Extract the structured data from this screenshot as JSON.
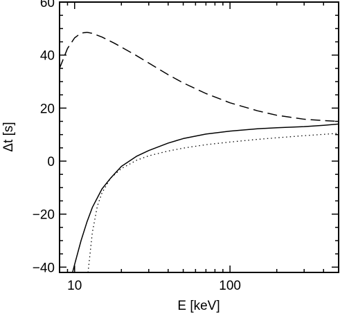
{
  "chart_data": {
    "type": "line",
    "title": "",
    "xlabel": "E [keV]",
    "ylabel": "Δt [s]",
    "xscale": "log",
    "xlim": [
      8,
      500
    ],
    "ylim": [
      -42,
      60
    ],
    "grid": false,
    "legend": "none",
    "x_tick_labels": [
      {
        "value": 10,
        "label": "10"
      },
      {
        "value": 100,
        "label": "100"
      }
    ],
    "y_tick_labels": [
      {
        "value": 60,
        "label": "60"
      },
      {
        "value": 40,
        "label": "40"
      },
      {
        "value": 20,
        "label": "20"
      },
      {
        "value": 0,
        "label": "0"
      },
      {
        "value": -20,
        "label": "−20"
      },
      {
        "value": -40,
        "label": "−40"
      }
    ],
    "series": [
      {
        "style": "dashed",
        "x": [
          8,
          9,
          10,
          11,
          12,
          13,
          15,
          18,
          20,
          25,
          30,
          40,
          50,
          70,
          100,
          150,
          200,
          300,
          400,
          500
        ],
        "y": [
          35,
          42.5,
          46.5,
          48.3,
          48.6,
          48.2,
          46.8,
          44.5,
          43.0,
          39.8,
          37.0,
          32.6,
          29.5,
          25.5,
          22.0,
          19.0,
          17.3,
          15.8,
          15.3,
          15.0
        ]
      },
      {
        "style": "solid",
        "x": [
          9.7,
          10,
          11,
          12,
          13,
          15,
          17,
          20,
          25,
          30,
          40,
          50,
          70,
          100,
          150,
          200,
          300,
          400,
          500
        ],
        "y": [
          -42,
          -39,
          -30,
          -23,
          -17.5,
          -10.5,
          -6.5,
          -2,
          1.8,
          4.0,
          6.8,
          8.5,
          10.2,
          11.3,
          12.2,
          12.6,
          13.0,
          13.5,
          14.0
        ]
      },
      {
        "style": "dotted",
        "x": [
          12.2,
          13,
          14,
          15,
          17,
          20,
          25,
          30,
          40,
          50,
          70,
          100,
          150,
          200,
          300,
          400,
          500
        ],
        "y": [
          -42,
          -27,
          -17,
          -12,
          -6.5,
          -2.8,
          0.3,
          2.0,
          3.8,
          4.9,
          6.2,
          7.2,
          8.2,
          8.8,
          9.6,
          10.1,
          10.5
        ]
      }
    ]
  }
}
